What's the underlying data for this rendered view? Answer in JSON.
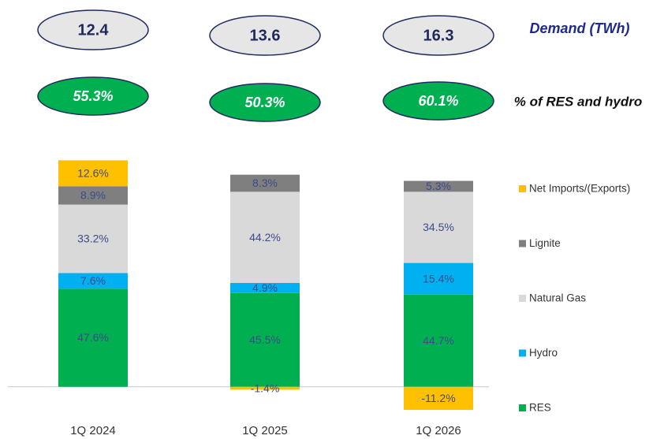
{
  "chart_data": {
    "type": "stacked_bar",
    "categories": [
      "1Q 2024",
      "1Q 2025",
      "1Q 2026"
    ],
    "series": [
      {
        "name": "RES",
        "color": "#00b050",
        "values": [
          47.6,
          45.5,
          44.7
        ],
        "value_labels": [
          "47.6%",
          "45.5%",
          "44.7%"
        ]
      },
      {
        "name": "Hydro",
        "color": "#00b0f0",
        "values": [
          7.6,
          4.9,
          15.4
        ],
        "value_labels": [
          "7.6%",
          "4.9%",
          "15.4%"
        ]
      },
      {
        "name": "Natural Gas",
        "color": "#d9d9d9",
        "values": [
          33.2,
          44.2,
          34.5
        ],
        "value_labels": [
          "33.2%",
          "44.2%",
          "34.5%"
        ]
      },
      {
        "name": "Lignite",
        "color": "#7f7f7f",
        "values": [
          8.9,
          8.3,
          5.3
        ],
        "value_labels": [
          "8.9%",
          "8.3%",
          "5.3%"
        ]
      },
      {
        "name": "Net Imports/(Exports)",
        "color": "#ffc000",
        "values": [
          12.6,
          -1.4,
          -11.2
        ],
        "value_labels": [
          "12.6%",
          "-1.4%",
          "-11.2%"
        ]
      }
    ],
    "ylim": [
      -15,
      115
    ],
    "demand": {
      "label": "Demand (TWh)",
      "values": [
        12.4,
        13.6,
        16.3
      ]
    },
    "res_hydro": {
      "label": "% of RES and hydro",
      "values": [
        55.3,
        50.3,
        60.1
      ],
      "value_labels": [
        "55.3%",
        "50.3%",
        "60.1%"
      ]
    }
  }
}
